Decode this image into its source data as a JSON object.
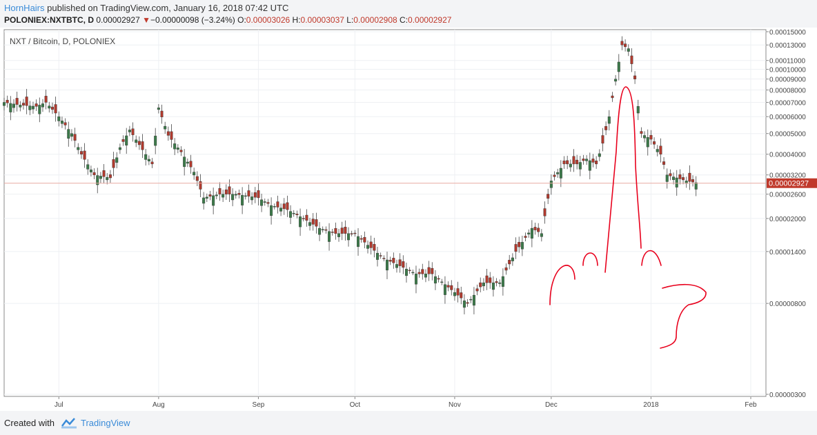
{
  "header": {
    "author": "HornHairs",
    "published_text": "published on TradingView.com, January 16, 2018 07:42 UTC",
    "symbol": "POLONIEX:NXTBTC, D",
    "last_price": "0.00002927",
    "change_arrow": "▼",
    "change": "−0.00000098 (−3.24%)",
    "o_label": "O:",
    "o_value": "0.00003026",
    "h_label": "H:",
    "h_value": "0.00003037",
    "l_label": "L:",
    "l_value": "0.00002908",
    "c_label": "C:",
    "c_value": "0.00002927"
  },
  "footer": {
    "created_with": "Created with",
    "brand": "TradingView"
  },
  "chart_data": {
    "type": "candlestick",
    "title": "NXT / Bitcoin, D, POLONIEX",
    "y_scale": "log",
    "ylim": [
      3e-06,
      1.5e-05
    ],
    "y_ticks": [
      "0.00015000",
      "0.00013000",
      "0.00011000",
      "0.00010000",
      "0.00009000",
      "0.00008000",
      "0.00007000",
      "0.00006000",
      "0.00005000",
      "0.00004000",
      "0.00003200",
      "0.00002600",
      "0.00002000",
      "0.00001400",
      "0.00000800",
      "0.00000300"
    ],
    "y_tick_values": [
      0.00015,
      0.00013,
      0.00011,
      0.0001,
      9e-05,
      8e-05,
      7e-05,
      6e-05,
      5e-05,
      4e-05,
      3.2e-05,
      2.6e-05,
      2e-05,
      1.4e-05,
      8e-06,
      3e-06
    ],
    "x_ticks": [
      "Jul",
      "Aug",
      "Sep",
      "Oct",
      "Nov",
      "Dec",
      "2018",
      "Feb"
    ],
    "x_tick_dates": [
      "2017-07-01",
      "2017-08-01",
      "2017-09-01",
      "2017-10-01",
      "2017-11-01",
      "2017-12-01",
      "2018-01-01",
      "2018-02-01"
    ],
    "x_range": [
      "2017-06-14",
      "2018-02-01"
    ],
    "current_price_label": "0.00002927",
    "current_price": 2.927e-05,
    "up_color": "#3c7a4a",
    "down_color": "#b03a2e",
    "grid": true,
    "series": [
      {
        "date": "2017-06-14",
        "close": 7e-05
      },
      {
        "date": "2017-06-19",
        "close": 6.8e-05
      },
      {
        "date": "2017-06-24",
        "close": 6.7e-05
      },
      {
        "date": "2017-06-27",
        "close": 7e-05
      },
      {
        "date": "2017-07-01",
        "close": 6e-05
      },
      {
        "date": "2017-07-05",
        "close": 5e-05
      },
      {
        "date": "2017-07-08",
        "close": 4e-05
      },
      {
        "date": "2017-07-12",
        "close": 3.2e-05
      },
      {
        "date": "2017-07-17",
        "close": 3.1e-05
      },
      {
        "date": "2017-07-20",
        "close": 4.3e-05
      },
      {
        "date": "2017-07-23",
        "close": 5.2e-05
      },
      {
        "date": "2017-07-27",
        "close": 4.2e-05
      },
      {
        "date": "2017-07-30",
        "close": 3.6e-05
      },
      {
        "date": "2017-08-01",
        "close": 6.6e-05
      },
      {
        "date": "2017-08-04",
        "close": 4.9e-05
      },
      {
        "date": "2017-08-08",
        "close": 4.1e-05
      },
      {
        "date": "2017-08-12",
        "close": 3.3e-05
      },
      {
        "date": "2017-08-15",
        "close": 2.5e-05
      },
      {
        "date": "2017-08-20",
        "close": 2.6e-05
      },
      {
        "date": "2017-08-25",
        "close": 2.6e-05
      },
      {
        "date": "2017-09-01",
        "close": 2.5e-05
      },
      {
        "date": "2017-09-05",
        "close": 2.3e-05
      },
      {
        "date": "2017-09-10",
        "close": 2.2e-05
      },
      {
        "date": "2017-09-15",
        "close": 2e-05
      },
      {
        "date": "2017-09-20",
        "close": 1.8e-05
      },
      {
        "date": "2017-09-25",
        "close": 1.7e-05
      },
      {
        "date": "2017-10-01",
        "close": 1.7e-05
      },
      {
        "date": "2017-10-05",
        "close": 1.5e-05
      },
      {
        "date": "2017-10-10",
        "close": 1.3e-05
      },
      {
        "date": "2017-10-15",
        "close": 1.2e-05
      },
      {
        "date": "2017-10-20",
        "close": 1.1e-05
      },
      {
        "date": "2017-10-25",
        "close": 1.1e-05
      },
      {
        "date": "2017-11-01",
        "close": 9e-06
      },
      {
        "date": "2017-11-05",
        "close": 8e-06
      },
      {
        "date": "2017-11-10",
        "close": 1e-05
      },
      {
        "date": "2017-11-15",
        "close": 1e-05
      },
      {
        "date": "2017-11-20",
        "close": 1.4e-05
      },
      {
        "date": "2017-11-25",
        "close": 1.8e-05
      },
      {
        "date": "2017-11-28",
        "close": 1.7e-05
      },
      {
        "date": "2017-12-01",
        "close": 3e-05
      },
      {
        "date": "2017-12-05",
        "close": 3.6e-05
      },
      {
        "date": "2017-12-09",
        "close": 3.6e-05
      },
      {
        "date": "2017-12-12",
        "close": 3.8e-05
      },
      {
        "date": "2017-12-15",
        "close": 3.6e-05
      },
      {
        "date": "2017-12-17",
        "close": 4.5e-05
      },
      {
        "date": "2017-12-19",
        "close": 6e-05
      },
      {
        "date": "2017-12-21",
        "close": 9e-05
      },
      {
        "date": "2017-12-23",
        "close": 0.00013
      },
      {
        "date": "2017-12-25",
        "close": 0.000125
      },
      {
        "date": "2017-12-27",
        "close": 9e-05
      },
      {
        "date": "2017-12-29",
        "close": 5e-05
      },
      {
        "date": "2018-01-01",
        "close": 4.7e-05
      },
      {
        "date": "2018-01-04",
        "close": 4e-05
      },
      {
        "date": "2018-01-06",
        "close": 3.2e-05
      },
      {
        "date": "2018-01-09",
        "close": 3.1e-05
      },
      {
        "date": "2018-01-12",
        "close": 3e-05
      },
      {
        "date": "2018-01-16",
        "close": 2.927e-05
      }
    ]
  }
}
